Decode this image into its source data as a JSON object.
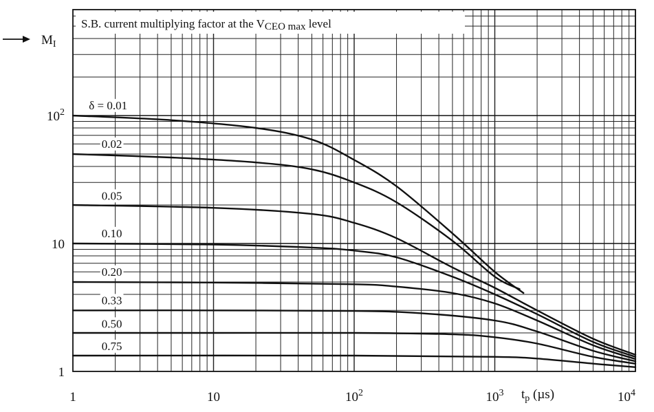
{
  "figure_code": "7262416",
  "chart_data": {
    "type": "line",
    "title": "S.B. current multiplying factor at the V",
    "title_sub": "CEO max",
    "title_tail": "level",
    "ylabel_main": "M",
    "ylabel_sub": "I",
    "xlabel_main": "t",
    "xlabel_sub": "p",
    "xlabel_unit": "(µs)",
    "xscale": "log",
    "yscale": "log",
    "xlim": [
      1,
      10000
    ],
    "ylim": [
      1,
      300
    ],
    "grid": true,
    "x_ticks": [
      {
        "value": 1,
        "base": "1",
        "exp": ""
      },
      {
        "value": 10,
        "base": "10",
        "exp": ""
      },
      {
        "value": 100,
        "base": "10",
        "exp": "2"
      },
      {
        "value": 1000,
        "base": "10",
        "exp": "3"
      },
      {
        "value": 10000,
        "base": "10",
        "exp": "4"
      }
    ],
    "y_ticks": [
      {
        "value": 1,
        "base": "1",
        "exp": ""
      },
      {
        "value": 10,
        "base": "10",
        "exp": ""
      },
      {
        "value": 100,
        "base": "10",
        "exp": "2"
      }
    ],
    "series": [
      {
        "name": "δ = 0.01",
        "label": "δ = 0.01",
        "label_at": [
          1.3,
          112
        ],
        "points": [
          [
            1,
            100
          ],
          [
            5,
            92
          ],
          [
            20,
            80
          ],
          [
            50,
            65
          ],
          [
            100,
            45
          ],
          [
            200,
            28
          ],
          [
            500,
            12
          ],
          [
            1000,
            6
          ],
          [
            1600,
            4.1
          ]
        ]
      },
      {
        "name": "0.02",
        "label": "0.02",
        "label_at": [
          1.6,
          56
        ],
        "points": [
          [
            1,
            50
          ],
          [
            5,
            47
          ],
          [
            20,
            43
          ],
          [
            50,
            38
          ],
          [
            100,
            30
          ],
          [
            200,
            21
          ],
          [
            500,
            10.5
          ],
          [
            1000,
            5.5
          ],
          [
            1500,
            4.4
          ]
        ]
      },
      {
        "name": "0.05",
        "label": "0.05",
        "label_at": [
          1.6,
          22
        ],
        "points": [
          [
            1,
            20
          ],
          [
            10,
            19
          ],
          [
            50,
            17
          ],
          [
            100,
            14.5
          ],
          [
            200,
            11
          ],
          [
            500,
            6.5
          ],
          [
            1000,
            4.5
          ],
          [
            2000,
            3
          ],
          [
            5000,
            1.8
          ],
          [
            10000,
            1.35
          ]
        ]
      },
      {
        "name": "0.10",
        "label": "0.10",
        "label_at": [
          1.6,
          11.2
        ],
        "points": [
          [
            1,
            10
          ],
          [
            10,
            9.8
          ],
          [
            50,
            9.3
          ],
          [
            100,
            8.8
          ],
          [
            200,
            7.8
          ],
          [
            500,
            5.5
          ],
          [
            1000,
            4
          ],
          [
            2000,
            2.8
          ],
          [
            5000,
            1.7
          ],
          [
            10000,
            1.3
          ]
        ]
      },
      {
        "name": "0.20",
        "label": "0.20",
        "label_at": [
          1.6,
          5.6
        ],
        "points": [
          [
            1,
            5
          ],
          [
            10,
            4.95
          ],
          [
            100,
            4.8
          ],
          [
            200,
            4.6
          ],
          [
            500,
            4.1
          ],
          [
            1000,
            3.4
          ],
          [
            2000,
            2.5
          ],
          [
            5000,
            1.6
          ],
          [
            10000,
            1.25
          ]
        ]
      },
      {
        "name": "0.33",
        "label": "0.33",
        "label_at": [
          1.6,
          3.35
        ],
        "points": [
          [
            1,
            3
          ],
          [
            10,
            3
          ],
          [
            100,
            2.97
          ],
          [
            300,
            2.85
          ],
          [
            1000,
            2.5
          ],
          [
            2000,
            2.05
          ],
          [
            5000,
            1.45
          ],
          [
            10000,
            1.2
          ]
        ]
      },
      {
        "name": "0.50",
        "label": "0.50",
        "label_at": [
          1.6,
          2.2
        ],
        "points": [
          [
            1,
            2
          ],
          [
            10,
            2
          ],
          [
            100,
            2
          ],
          [
            500,
            1.95
          ],
          [
            1000,
            1.85
          ],
          [
            2000,
            1.65
          ],
          [
            5000,
            1.3
          ],
          [
            10000,
            1.15
          ]
        ]
      },
      {
        "name": "0.75",
        "label": "0.75",
        "label_at": [
          1.6,
          1.47
        ],
        "points": [
          [
            1,
            1.33
          ],
          [
            100,
            1.33
          ],
          [
            1000,
            1.3
          ],
          [
            2000,
            1.26
          ],
          [
            5000,
            1.15
          ],
          [
            10000,
            1.08
          ]
        ]
      }
    ]
  }
}
